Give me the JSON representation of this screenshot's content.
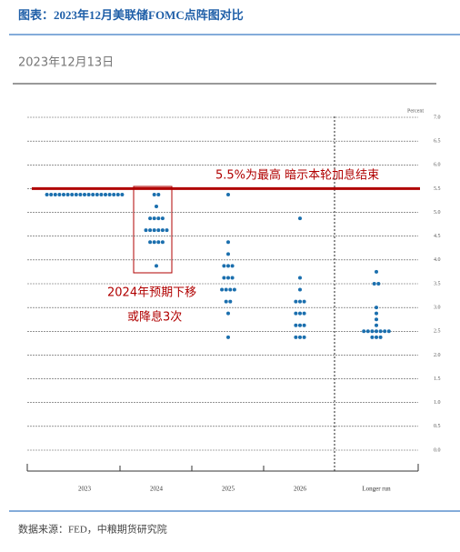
{
  "chart_data": {
    "type": "dot",
    "title": "图表：2023年12月美联储FOMC点阵图对比",
    "subtitle": "2023年12月13日",
    "y_label": "Percent",
    "source": "数据来源：FED，中粮期货研究院",
    "categories": [
      "2023",
      "2024",
      "2025",
      "2026",
      "Longer run"
    ],
    "dots": [
      [
        5.375,
        5.375,
        5.375,
        5.375,
        5.375,
        5.375,
        5.375,
        5.375,
        5.375,
        5.375,
        5.375,
        5.375,
        5.375,
        5.375,
        5.375,
        5.375,
        5.375,
        5.375,
        5.375
      ],
      [
        5.375,
        5.375,
        5.125,
        4.875,
        4.875,
        4.875,
        4.875,
        4.625,
        4.625,
        4.625,
        4.625,
        4.625,
        4.625,
        4.375,
        4.375,
        4.375,
        4.375,
        3.875
      ],
      [
        5.375,
        4.375,
        4.125,
        3.875,
        3.875,
        3.875,
        3.625,
        3.625,
        3.625,
        3.375,
        3.375,
        3.375,
        3.375,
        3.125,
        3.125,
        2.875,
        2.375
      ],
      [
        4.875,
        3.625,
        3.375,
        3.125,
        3.125,
        3.125,
        2.875,
        2.875,
        2.875,
        2.625,
        2.625,
        2.625,
        2.375,
        2.375,
        2.375
      ],
      [
        3.75,
        3.5,
        3.5,
        3.0,
        2.875,
        2.75,
        2.625,
        2.5,
        2.5,
        2.5,
        2.5,
        2.5,
        2.5,
        2.5,
        2.375,
        2.375,
        2.375
      ]
    ],
    "color": "#1b6fae",
    "ylim": [
      0,
      7
    ],
    "yticks": [
      {
        "value": 0,
        "label": "0.0"
      },
      0.5,
      {
        "value": 1,
        "label": "1.0"
      },
      1.5,
      {
        "value": 2,
        "label": "2.0"
      },
      2.5,
      {
        "value": 3,
        "label": "3.0"
      },
      3.5,
      {
        "value": 4,
        "label": "4.0"
      },
      4.5,
      {
        "value": 5,
        "label": "5.0"
      },
      5.5,
      {
        "value": 6,
        "label": "6.0"
      },
      6.5,
      {
        "value": 7,
        "label": "7.0"
      }
    ],
    "grid": true,
    "reference_line": {
      "value": 5.5,
      "color": "#b00000",
      "label": "5.5%为最高  暗示本轮加息结束"
    },
    "annotations": [
      "2024年预期下移",
      "或降息3次"
    ]
  }
}
